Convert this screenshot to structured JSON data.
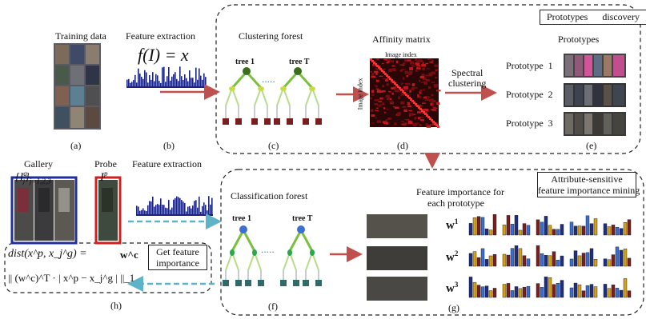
{
  "top": {
    "training_data": "Training data",
    "feature_extraction": "Feature extraction",
    "feature_formula": "f(I) = x",
    "clustering_forest": "Clustering forest",
    "tree_1": "tree 1",
    "tree_T": "tree T",
    "affinity_matrix": "Affinity matrix",
    "image_index_top": "Image index",
    "image_index_side": "Image index",
    "spectral_1": "Spectral",
    "spectral_2": "clustering",
    "prototypes_discovery": "Prototypes      discovery",
    "prototypes": "Prototypes",
    "prototype_labels": [
      "Prototype  1",
      "Prototype  2",
      "Prototype  3"
    ],
    "captions": [
      "(a)",
      "(b)",
      "(c)",
      "(d)",
      "(e)"
    ]
  },
  "bottom": {
    "gallery": "Gallery",
    "gallery_formula": "{I",
    "gallery_sup": "g",
    "gallery_sub_j": "j",
    "gallery_close": "}",
    "gallery_idx": "j=1,2,3",
    "probe": "Probe",
    "probe_formula": "I",
    "probe_sup": "p",
    "feature_extraction": "Feature extraction",
    "dist_line1": "dist(x^p, x_j^g) =",
    "dist_line2": "|| (w^c)^T · | x^p − x_j^g |  ||_1",
    "wc": "w^c",
    "get_feature_1": "Get feature",
    "get_feature_2": "importance",
    "classification_forest": "Classification forest",
    "tree_1": "tree 1",
    "tree_T": "tree T",
    "attr_1": "Attribute-sensitive",
    "attr_2": "feature importance mining",
    "fi_1": "Feature importance for",
    "fi_2": "each prototype",
    "w_labels": [
      "w",
      "w",
      "w"
    ],
    "w_sups": [
      "1",
      "2",
      "3"
    ],
    "captions": [
      "(h)",
      "(f)",
      "(g)"
    ]
  },
  "colors": {
    "arrow_red": "#c0504d",
    "arrow_teal": "#5fb3c9",
    "histogram_blue": "#1a237e",
    "tree_green": "#7bbf3f",
    "tree_node_top": "#3a6e1a",
    "tree_leaf": "#7a1f1f",
    "tree_node_blue": "#3b6fd1",
    "gallery_border": "#1f2f9e",
    "probe_border": "#d11f1f"
  }
}
